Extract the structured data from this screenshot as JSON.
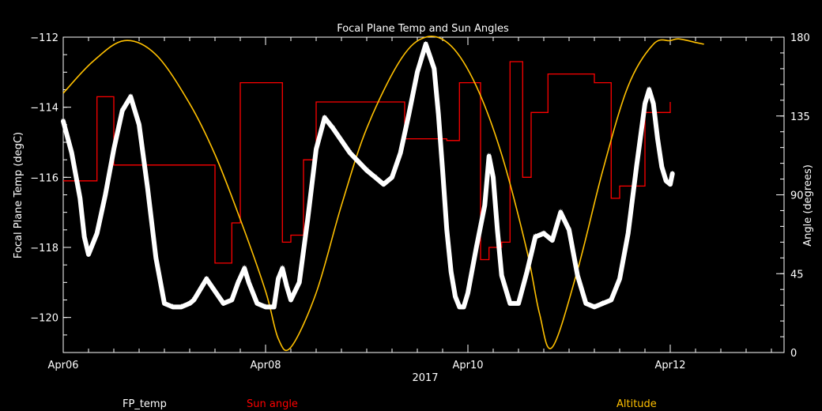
{
  "chart_data": {
    "type": "line",
    "title": "Focal Plane Temp and Sun Angles",
    "xlabel": "2017",
    "ylabel": "Focal Plane Temp (degC)",
    "y2label": "Angle (degrees)",
    "x_unit": "days (2017)",
    "xlim": [
      "2017-04-06T00:00",
      "2017-04-13T03:00"
    ],
    "ylim": [
      -121,
      -112
    ],
    "y2lim": [
      0,
      180
    ],
    "x_ticks": [
      "Apr06",
      "Apr08",
      "Apr10",
      "Apr12"
    ],
    "x_tick_values": [
      "2017-04-06T00:00",
      "2017-04-08T00:00",
      "2017-04-10T00:00",
      "2017-04-12T00:00"
    ],
    "y_ticks": [
      "−112",
      "−114",
      "−116",
      "−118",
      "−120"
    ],
    "y_tick_values": [
      -112,
      -114,
      -116,
      -118,
      -120
    ],
    "y2_ticks": [
      "0",
      "45",
      "90",
      "135",
      "180"
    ],
    "y2_tick_values": [
      0,
      45,
      90,
      135,
      180
    ],
    "grid": false,
    "legend_position": "bottom",
    "series": [
      {
        "name": "FP_temp",
        "axis": "left",
        "style": "markers",
        "color": "#ffffff",
        "x": [
          "2017-04-06T00:00",
          "2017-04-06T02:00",
          "2017-04-06T04:00",
          "2017-04-06T05:00",
          "2017-04-06T06:00",
          "2017-04-06T08:00",
          "2017-04-06T10:00",
          "2017-04-06T12:00",
          "2017-04-06T14:00",
          "2017-04-06T16:00",
          "2017-04-06T18:00",
          "2017-04-06T20:00",
          "2017-04-06T22:00",
          "2017-04-07T00:00",
          "2017-04-07T02:00",
          "2017-04-07T04:00",
          "2017-04-07T06:00",
          "2017-04-07T07:00",
          "2017-04-07T10:00",
          "2017-04-07T14:00",
          "2017-04-07T16:00",
          "2017-04-07T17:30",
          "2017-04-07T19:00",
          "2017-04-07T20:00",
          "2017-04-07T22:00",
          "2017-04-08T00:00",
          "2017-04-08T02:00",
          "2017-04-08T03:00",
          "2017-04-08T04:00",
          "2017-04-08T05:00",
          "2017-04-08T06:00",
          "2017-04-08T08:00",
          "2017-04-08T10:00",
          "2017-04-08T12:00",
          "2017-04-08T14:00",
          "2017-04-08T16:00",
          "2017-04-08T20:00",
          "2017-04-09T00:00",
          "2017-04-09T02:00",
          "2017-04-09T04:00",
          "2017-04-09T06:00",
          "2017-04-09T08:00",
          "2017-04-09T10:00",
          "2017-04-09T12:00",
          "2017-04-09T14:00",
          "2017-04-09T16:00",
          "2017-04-09T17:00",
          "2017-04-09T18:00",
          "2017-04-09T19:00",
          "2017-04-09T20:00",
          "2017-04-09T21:00",
          "2017-04-09T22:00",
          "2017-04-09T23:00",
          "2017-04-10T00:00",
          "2017-04-10T02:00",
          "2017-04-10T04:00",
          "2017-04-10T05:00",
          "2017-04-10T06:00",
          "2017-04-10T07:00",
          "2017-04-10T08:00",
          "2017-04-10T10:00",
          "2017-04-10T12:00",
          "2017-04-10T14:00",
          "2017-04-10T16:00",
          "2017-04-10T18:00",
          "2017-04-10T20:00",
          "2017-04-10T22:00",
          "2017-04-11T00:00",
          "2017-04-11T02:00",
          "2017-04-11T04:00",
          "2017-04-11T06:00",
          "2017-04-11T08:00",
          "2017-04-11T10:00",
          "2017-04-11T12:00",
          "2017-04-11T14:00",
          "2017-04-11T16:00",
          "2017-04-11T18:00",
          "2017-04-11T19:00",
          "2017-04-11T20:00",
          "2017-04-11T21:00",
          "2017-04-11T22:00",
          "2017-04-11T23:00",
          "2017-04-12T00:00",
          "2017-04-12T00:30"
        ],
        "values": [
          -114.4,
          -115.3,
          -116.6,
          -117.7,
          -118.2,
          -117.6,
          -116.5,
          -115.2,
          -114.1,
          -113.7,
          -114.5,
          -116.3,
          -118.3,
          -119.6,
          -119.7,
          -119.7,
          -119.6,
          -119.5,
          -118.9,
          -119.6,
          -119.5,
          -119.0,
          -118.6,
          -119.0,
          -119.6,
          -119.7,
          -119.7,
          -118.9,
          -118.6,
          -119.1,
          -119.5,
          -119.0,
          -117.2,
          -115.2,
          -114.3,
          -114.6,
          -115.3,
          -115.8,
          -116.0,
          -116.2,
          -116.0,
          -115.3,
          -114.2,
          -113.0,
          -112.2,
          -112.9,
          -114.2,
          -115.8,
          -117.5,
          -118.7,
          -119.4,
          -119.7,
          -119.7,
          -119.3,
          -118.0,
          -116.8,
          -115.4,
          -116.0,
          -117.5,
          -118.8,
          -119.6,
          -119.6,
          -118.7,
          -117.7,
          -117.6,
          -117.8,
          -117.0,
          -117.5,
          -118.8,
          -119.6,
          -119.7,
          -119.6,
          -119.5,
          -118.9,
          -117.6,
          -115.7,
          -113.9,
          -113.5,
          -113.9,
          -114.9,
          -115.7,
          -116.1,
          -116.2,
          -115.9
        ]
      },
      {
        "name": "Sun angle",
        "axis": "right",
        "style": "step",
        "color": "#ff0000",
        "x": [
          "2017-04-06T00:00",
          "2017-04-06T04:30",
          "2017-04-06T08:00",
          "2017-04-06T10:00",
          "2017-04-06T12:00",
          "2017-04-07T08:00",
          "2017-04-07T12:00",
          "2017-04-07T14:00",
          "2017-04-07T15:00",
          "2017-04-07T16:00",
          "2017-04-07T17:00",
          "2017-04-07T18:00",
          "2017-04-07T20:00",
          "2017-04-08T04:00",
          "2017-04-08T06:00",
          "2017-04-08T08:00",
          "2017-04-08T09:00",
          "2017-04-08T10:00",
          "2017-04-08T12:00",
          "2017-04-09T03:00",
          "2017-04-09T09:00",
          "2017-04-09T12:00",
          "2017-04-09T19:00",
          "2017-04-09T22:00",
          "2017-04-09T23:00",
          "2017-04-10T00:00",
          "2017-04-10T03:00",
          "2017-04-10T05:00",
          "2017-04-10T07:00",
          "2017-04-10T08:00",
          "2017-04-10T09:00",
          "2017-04-10T10:00",
          "2017-04-10T11:00",
          "2017-04-10T13:00",
          "2017-04-10T15:00",
          "2017-04-10T17:00",
          "2017-04-10T19:00",
          "2017-04-10T21:00",
          "2017-04-11T06:00",
          "2017-04-11T10:00",
          "2017-04-11T12:00",
          "2017-04-11T18:00",
          "2017-04-11T20:00",
          "2017-04-12T00:00"
        ],
        "values": [
          98,
          98,
          146,
          146,
          107,
          107,
          51,
          51,
          51,
          74,
          74,
          154,
          154,
          63,
          67,
          67,
          110,
          110,
          143,
          143,
          122,
          122,
          121,
          154,
          154,
          154,
          53,
          60,
          60,
          63,
          63,
          166,
          166,
          100,
          137,
          137,
          159,
          159,
          154,
          88,
          95,
          137,
          137,
          143
        ]
      },
      {
        "name": "Altitude",
        "axis": "right",
        "style": "line",
        "color": "#ffc000",
        "x": [
          "2017-04-06T00:00",
          "2017-04-06T07:00",
          "2017-04-06T14:30",
          "2017-04-06T22:00",
          "2017-04-07T06:00",
          "2017-04-07T12:00",
          "2017-04-07T18:00",
          "2017-04-08T00:00",
          "2017-04-08T03:00",
          "2017-04-08T06:00",
          "2017-04-08T12:00",
          "2017-04-08T18:00",
          "2017-04-09T00:00",
          "2017-04-09T08:00",
          "2017-04-09T14:00",
          "2017-04-09T20:00",
          "2017-04-10T02:00",
          "2017-04-10T08:00",
          "2017-04-10T14:00",
          "2017-04-10T17:00",
          "2017-04-10T20:00",
          "2017-04-11T02:00",
          "2017-04-11T08:00",
          "2017-04-11T14:00",
          "2017-04-11T20:00",
          "2017-04-12T00:00",
          "2017-04-12T02:00",
          "2017-04-12T06:00",
          "2017-04-12T08:00"
        ],
        "values": [
          148,
          166,
          178,
          170,
          142,
          113,
          76,
          35,
          8,
          3,
          34,
          84,
          128,
          167,
          180,
          175,
          152,
          113,
          58,
          22,
          3,
          47,
          104,
          152,
          176,
          178,
          179,
          177,
          176
        ]
      }
    ]
  }
}
